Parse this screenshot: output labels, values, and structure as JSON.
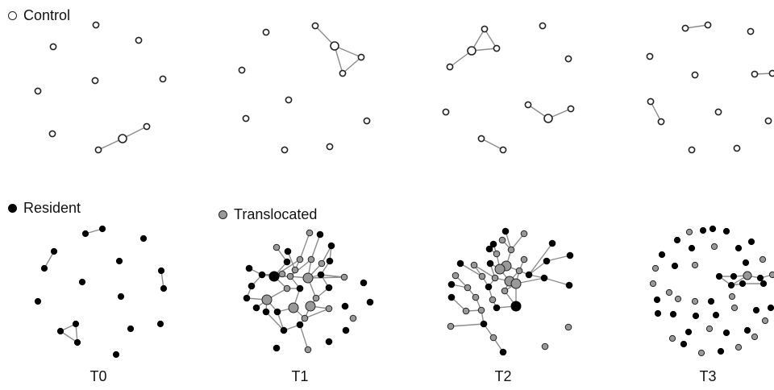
{
  "legend": [
    {
      "label": "Control",
      "color": "#ffffff",
      "edge_color": "#222222"
    },
    {
      "label": "Resident",
      "color": "#000000",
      "edge_color": "#000000"
    },
    {
      "label": "Translocated",
      "color": "#999999",
      "edge_color": "#222222"
    }
  ],
  "panels": [
    {
      "label": "T0"
    },
    {
      "label": "T1"
    },
    {
      "label": "T2"
    },
    {
      "label": "T3"
    }
  ],
  "colors": {
    "control_fill": "#ffffff",
    "resident_fill": "#000000",
    "translocated_fill": "#999999",
    "node_stroke": "#222222",
    "edge": "#8c8c8c"
  }
}
